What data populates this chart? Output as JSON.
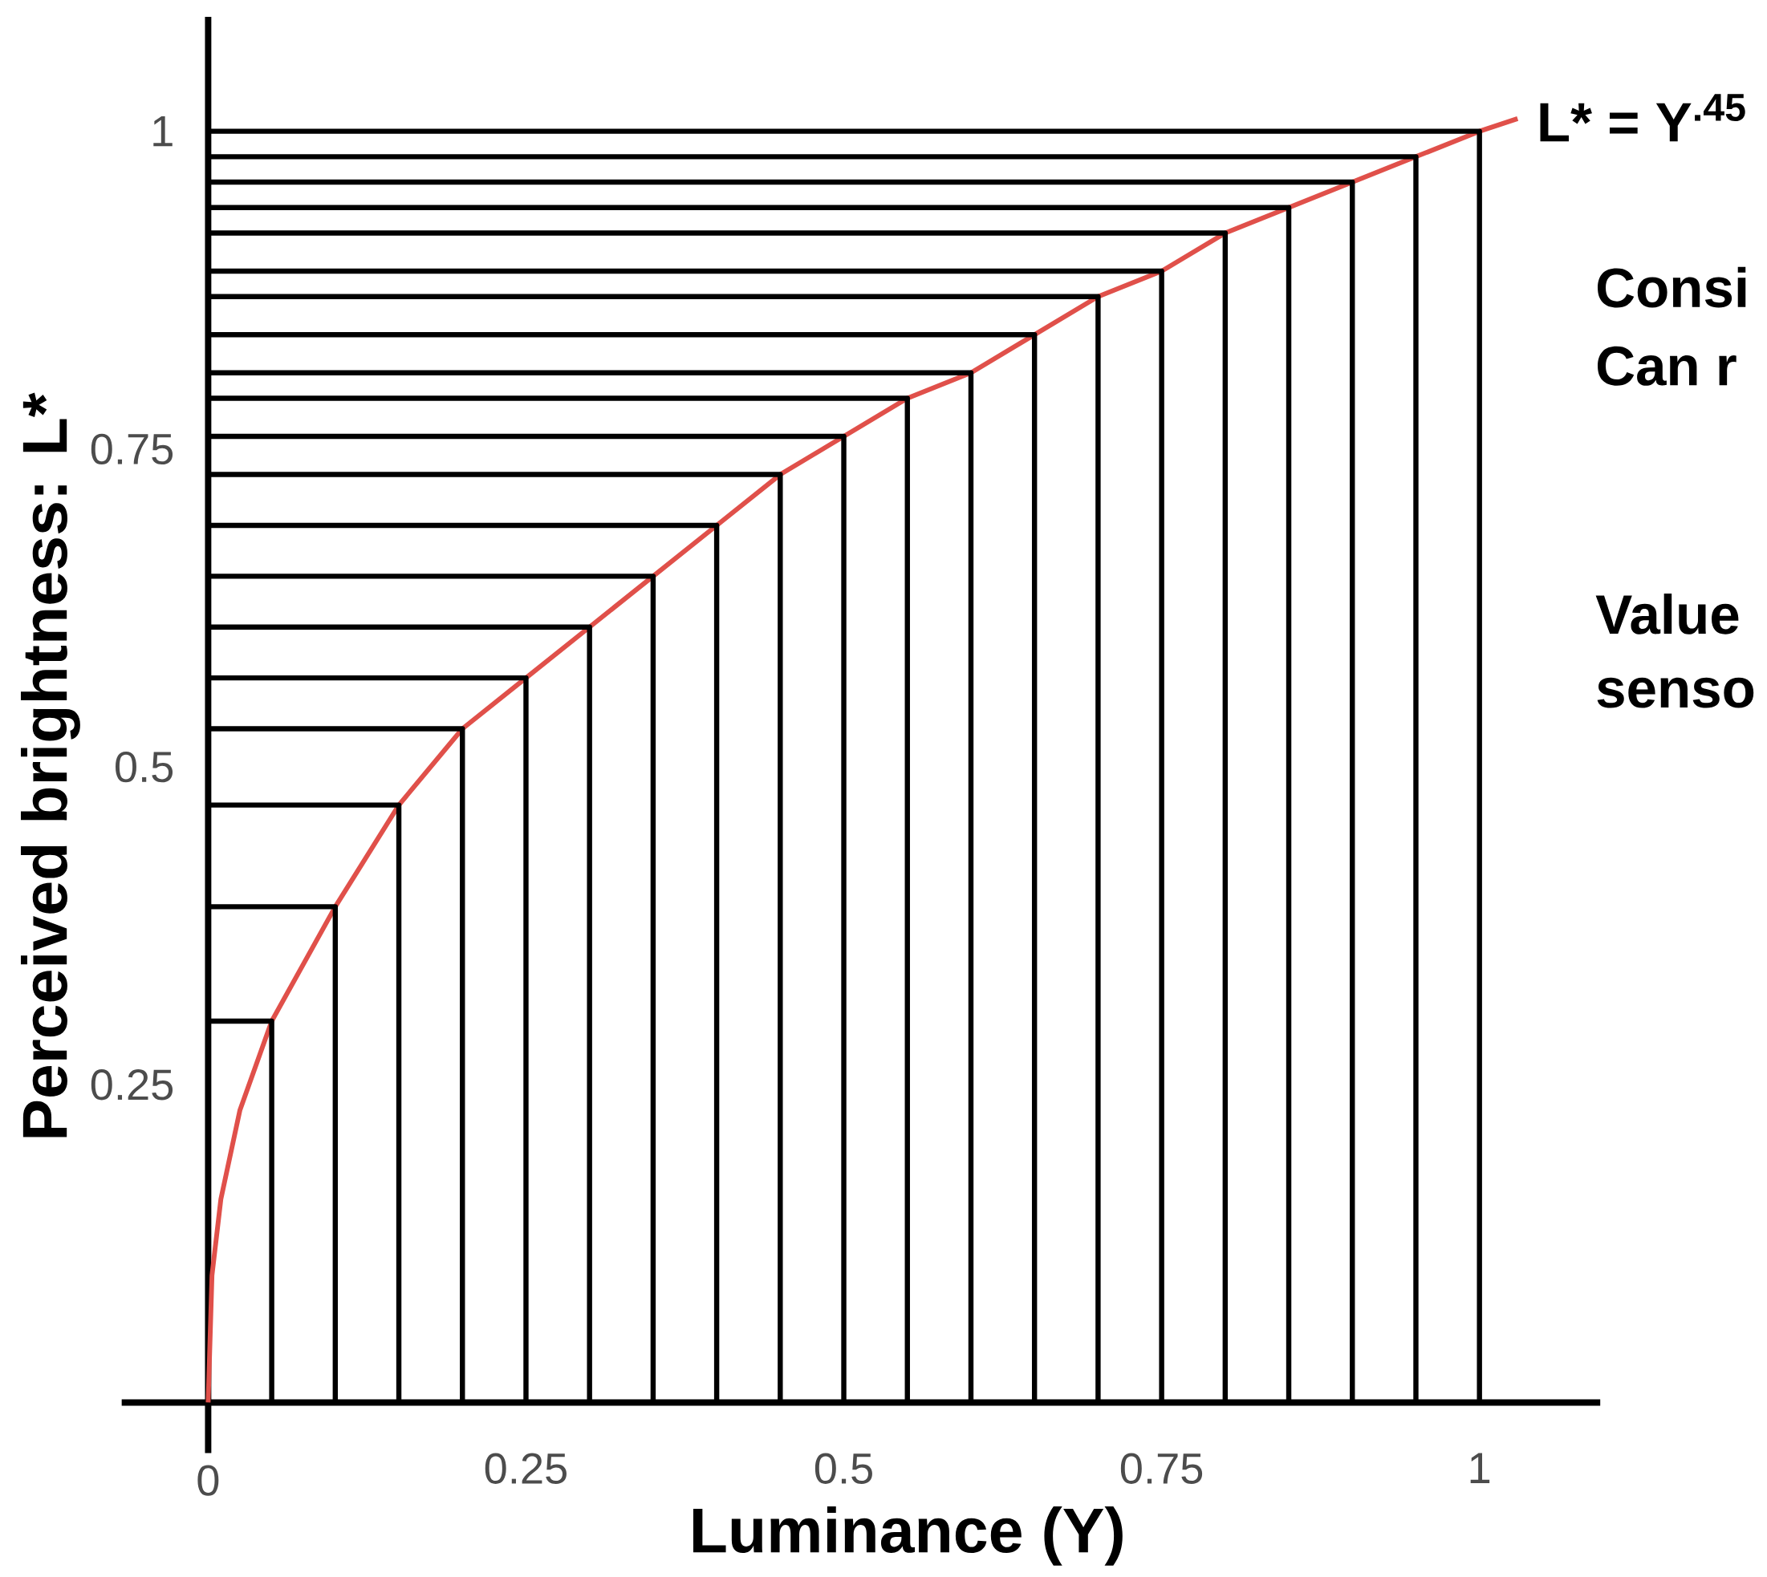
{
  "chart_data": {
    "type": "line",
    "xlabel": "Luminance (Y)",
    "ylabel": "Perceived brightness: L*",
    "xlim": [
      -0.068,
      1.095
    ],
    "ylim": [
      -0.062,
      1.09
    ],
    "xticks": [
      0,
      0.25,
      0.5,
      0.75,
      1
    ],
    "yticks": [
      0.25,
      0.5,
      0.75,
      1
    ],
    "marker": "none",
    "series": [
      {
        "color": "#e0504a",
        "x": [
          0,
          0.003,
          0.01,
          0.025,
          0.05,
          0.1,
          0.15,
          0.2,
          0.25,
          0.3,
          0.35,
          0.4,
          0.45,
          0.5,
          0.55,
          0.6,
          0.65,
          0.7,
          0.75,
          0.8,
          0.85,
          0.9,
          0.95,
          1,
          1.03
        ],
        "values": [
          0,
          0.1,
          0.16,
          0.23,
          0.3,
          0.39,
          0.47,
          0.53,
          0.57,
          0.61,
          0.65,
          0.69,
          0.73,
          0.76,
          0.79,
          0.81,
          0.84,
          0.87,
          0.89,
          0.92,
          0.94,
          0.96,
          0.98,
          1,
          1.01
        ]
      },
      {
        "color": "#000000",
        "x": [
          0,
          0.05,
          0.05
        ],
        "values": [
          0.3,
          0.3,
          0
        ]
      },
      {
        "color": "#000000",
        "x": [
          0,
          0.1,
          0.1
        ],
        "values": [
          0.39,
          0.39,
          0
        ]
      },
      {
        "color": "#000000",
        "x": [
          0,
          0.15,
          0.15
        ],
        "values": [
          0.47,
          0.47,
          0
        ]
      },
      {
        "color": "#000000",
        "x": [
          0,
          0.2,
          0.2
        ],
        "values": [
          0.53,
          0.53,
          0
        ]
      },
      {
        "color": "#000000",
        "x": [
          0,
          0.25,
          0.25
        ],
        "values": [
          0.57,
          0.57,
          0
        ]
      },
      {
        "color": "#000000",
        "x": [
          0,
          0.3,
          0.3
        ],
        "values": [
          0.61,
          0.61,
          0
        ]
      },
      {
        "color": "#000000",
        "x": [
          0,
          0.35,
          0.35
        ],
        "values": [
          0.65,
          0.65,
          0
        ]
      },
      {
        "color": "#000000",
        "x": [
          0,
          0.4,
          0.4
        ],
        "values": [
          0.69,
          0.69,
          0
        ]
      },
      {
        "color": "#000000",
        "x": [
          0,
          0.45,
          0.45
        ],
        "values": [
          0.73,
          0.73,
          0
        ]
      },
      {
        "color": "#000000",
        "x": [
          0,
          0.5,
          0.5
        ],
        "values": [
          0.76,
          0.76,
          0
        ]
      },
      {
        "color": "#000000",
        "x": [
          0,
          0.55,
          0.55
        ],
        "values": [
          0.79,
          0.79,
          0
        ]
      },
      {
        "color": "#000000",
        "x": [
          0,
          0.6,
          0.6
        ],
        "values": [
          0.81,
          0.81,
          0
        ]
      },
      {
        "color": "#000000",
        "x": [
          0,
          0.65,
          0.65
        ],
        "values": [
          0.84,
          0.84,
          0
        ]
      },
      {
        "color": "#000000",
        "x": [
          0,
          0.7,
          0.7
        ],
        "values": [
          0.87,
          0.87,
          0
        ]
      },
      {
        "color": "#000000",
        "x": [
          0,
          0.75,
          0.75
        ],
        "values": [
          0.89,
          0.89,
          0
        ]
      },
      {
        "color": "#000000",
        "x": [
          0,
          0.8,
          0.8
        ],
        "values": [
          0.92,
          0.92,
          0
        ]
      },
      {
        "color": "#000000",
        "x": [
          0,
          0.85,
          0.85
        ],
        "values": [
          0.94,
          0.94,
          0
        ]
      },
      {
        "color": "#000000",
        "x": [
          0,
          0.9,
          0.9
        ],
        "values": [
          0.96,
          0.96,
          0
        ]
      },
      {
        "color": "#000000",
        "x": [
          0,
          0.95,
          0.95
        ],
        "values": [
          0.98,
          0.98,
          0
        ]
      },
      {
        "color": "#000000",
        "x": [
          0,
          1,
          1
        ],
        "values": [
          1,
          1,
          0
        ]
      }
    ],
    "annotations": [
      {
        "text": "L* = Y$^{.45}$",
        "x": 1,
        "y": 1
      },
      "Consi",
      "Can r",
      "Value",
      "senso"
    ]
  }
}
